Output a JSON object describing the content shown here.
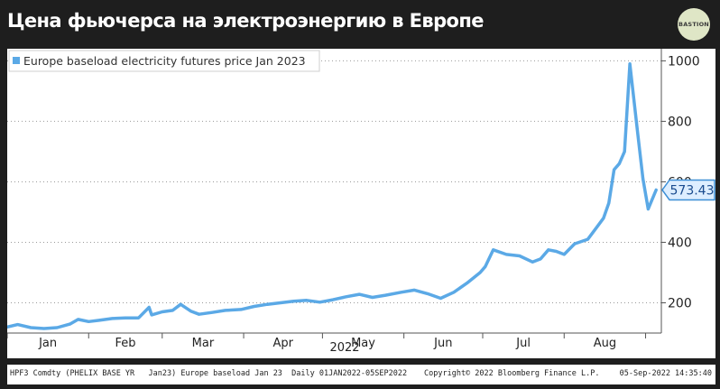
{
  "header": {
    "title": "Цена фьючерса на электроэнергию в Европе",
    "logo_text": "BASTION"
  },
  "chart_data": {
    "type": "line",
    "legend": "Europe baseload electricity futures price Jan 2023",
    "last_value_label": "573.43",
    "year_label": "2022",
    "x_ticks": [
      "Jan",
      "Feb",
      "Mar",
      "Apr",
      "May",
      "Jun",
      "Jul",
      "Aug"
    ],
    "y_ticks": [
      200,
      400,
      600,
      800,
      1000
    ],
    "ylim": [
      100,
      1040
    ],
    "xlim": [
      "2022-01-01",
      "2022-09-07"
    ],
    "grid": "horizontal dotted",
    "legend_position": "top-left",
    "series_color": "#5ba9e6",
    "x": [
      "2022-01-01",
      "2022-01-05",
      "2022-01-10",
      "2022-01-15",
      "2022-01-20",
      "2022-01-25",
      "2022-01-28",
      "2022-02-01",
      "2022-02-05",
      "2022-02-10",
      "2022-02-15",
      "2022-02-20",
      "2022-02-24",
      "2022-02-25",
      "2022-03-01",
      "2022-03-05",
      "2022-03-08",
      "2022-03-12",
      "2022-03-15",
      "2022-03-20",
      "2022-03-25",
      "2022-03-31",
      "2022-04-05",
      "2022-04-10",
      "2022-04-15",
      "2022-04-20",
      "2022-04-25",
      "2022-04-30",
      "2022-05-05",
      "2022-05-10",
      "2022-05-15",
      "2022-05-20",
      "2022-05-25",
      "2022-05-31",
      "2022-06-05",
      "2022-06-10",
      "2022-06-15",
      "2022-06-20",
      "2022-06-25",
      "2022-06-30",
      "2022-07-02",
      "2022-07-05",
      "2022-07-10",
      "2022-07-15",
      "2022-07-20",
      "2022-07-23",
      "2022-07-26",
      "2022-07-29",
      "2022-08-01",
      "2022-08-05",
      "2022-08-10",
      "2022-08-13",
      "2022-08-16",
      "2022-08-18",
      "2022-08-20",
      "2022-08-22",
      "2022-08-24",
      "2022-08-26",
      "2022-08-29",
      "2022-08-31",
      "2022-09-02",
      "2022-09-05"
    ],
    "values": [
      120,
      128,
      118,
      115,
      118,
      130,
      145,
      138,
      142,
      148,
      150,
      150,
      185,
      160,
      170,
      175,
      195,
      172,
      162,
      168,
      175,
      178,
      188,
      195,
      200,
      205,
      208,
      202,
      210,
      220,
      228,
      218,
      225,
      235,
      242,
      230,
      215,
      235,
      265,
      300,
      320,
      375,
      360,
      355,
      335,
      345,
      375,
      370,
      360,
      395,
      410,
      445,
      480,
      530,
      640,
      660,
      700,
      990,
      760,
      610,
      510,
      573
    ]
  },
  "footer": {
    "left": "HPF3 Comdty (PHELIX BASE YR   Jan23) Europe baseload Jan 23  Daily 01JAN2022-05SEP2022",
    "middle": "Copyright© 2022 Bloomberg Finance L.P.",
    "right": "05-Sep-2022 14:35:40"
  }
}
